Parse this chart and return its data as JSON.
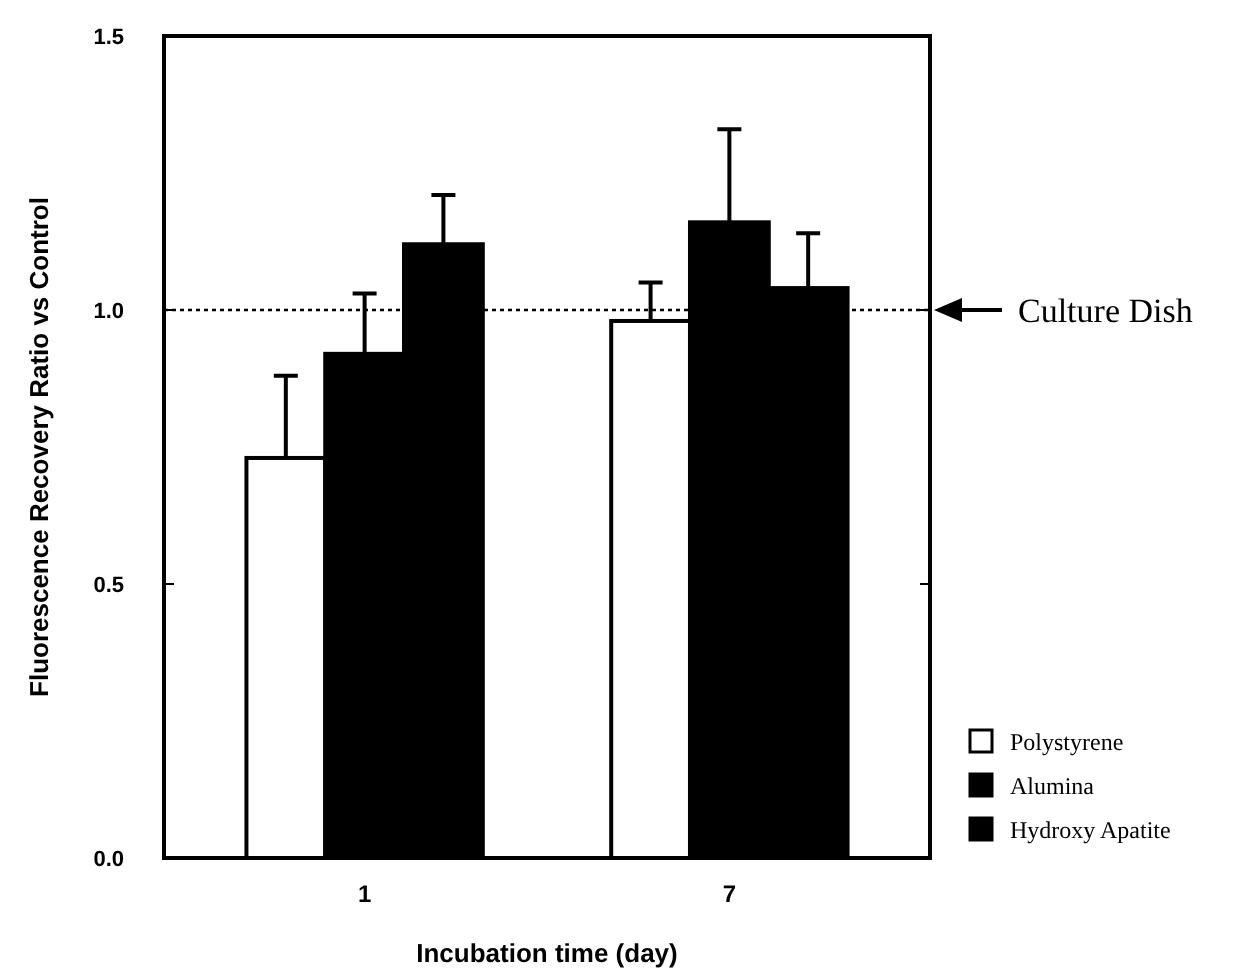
{
  "chart_data": {
    "type": "bar",
    "xlabel": "Incubation time (day)",
    "ylabel": "Fluorescence Recovery Ratio vs Control",
    "categories": [
      "1",
      "7"
    ],
    "series": [
      {
        "name": "Polystyrene",
        "color": "#ffffff",
        "values": [
          0.73,
          0.98
        ],
        "errors": [
          [
            0.73,
            0.88
          ],
          [
            0.98,
            1.05
          ]
        ]
      },
      {
        "name": "Alumina",
        "color": "#000000",
        "values": [
          0.92,
          1.16
        ],
        "errors": [
          [
            0.92,
            1.03
          ],
          [
            1.16,
            1.33
          ]
        ]
      },
      {
        "name": "Hydroxy Apatite",
        "color": "#000000",
        "values": [
          1.12,
          1.04
        ],
        "errors": [
          [
            1.12,
            1.21
          ],
          [
            1.04,
            1.14
          ]
        ]
      }
    ],
    "ylim": [
      0,
      1.5
    ],
    "yticks": [
      {
        "value": 0,
        "label": "0.0"
      },
      {
        "value": 0.5,
        "label": "0.5"
      },
      {
        "value": 1,
        "label": "1.0"
      },
      {
        "value": 1.5,
        "label": "1.5"
      }
    ],
    "ref_lines": [
      {
        "axis": "y",
        "value": 1,
        "label": "Culture Dish",
        "line_style": "dotted"
      }
    ],
    "legend": "bottom right"
  }
}
